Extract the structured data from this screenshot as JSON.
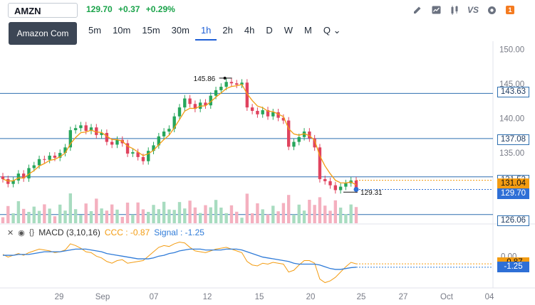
{
  "symbol": {
    "value": "AMZN",
    "tooltip": "Amazon Com"
  },
  "quote": {
    "price": "129.70",
    "change": "+0.37",
    "change_pct": "+0.29%",
    "color": "#1aa34a"
  },
  "toolbar": {
    "icons": [
      "pencil-icon",
      "chart-icon",
      "candles-icon",
      "compare-icon",
      "settings-icon",
      "alert-badge-icon"
    ],
    "vs_label": "VS",
    "badge": "1"
  },
  "intervals": [
    {
      "label": "5m",
      "active": false
    },
    {
      "label": "10m",
      "active": false
    },
    {
      "label": "15m",
      "active": false
    },
    {
      "label": "30m",
      "active": false
    },
    {
      "label": "1h",
      "active": true
    },
    {
      "label": "2h",
      "active": false
    },
    {
      "label": "4h",
      "active": false
    },
    {
      "label": "D",
      "active": false
    },
    {
      "label": "W",
      "active": false
    },
    {
      "label": "M",
      "active": false
    },
    {
      "label": "Q",
      "active": false
    }
  ],
  "price_axis": [
    "150.00",
    "145.00",
    "140.00",
    "135.00",
    "130.00"
  ],
  "price_tags": [
    {
      "label": "143.63",
      "style": "line"
    },
    {
      "label": "137.08",
      "style": "line"
    },
    {
      "label": "131.53",
      "style": "line"
    },
    {
      "label": "131.04",
      "style": "orange"
    },
    {
      "label": "129.70",
      "style": "blue"
    },
    {
      "label": "126.06",
      "style": "line"
    }
  ],
  "annotations": {
    "high": "145.86",
    "low": "129.31"
  },
  "macd": {
    "name": "MACD (3,10,16)",
    "ccc_label": "CCC : -0.87",
    "signal_label": "Signal : -1.25",
    "axis_value": "0.00",
    "tag_ccc": "-0.87",
    "tag_signal": "-1.25",
    "ccc_color": "#f39c12",
    "signal_color": "#2f7bd8"
  },
  "time_axis": [
    "29",
    "Sep",
    "07",
    "12",
    "15",
    "20",
    "25",
    "27",
    "Oct",
    "04"
  ],
  "chart_data": {
    "type": "candlestick",
    "interval": "1h",
    "ylim": [
      125,
      151
    ],
    "horizontal_levels": [
      143.63,
      137.08,
      131.53,
      126.06
    ],
    "close_series": [
      131.2,
      130.5,
      131.0,
      132.0,
      131.3,
      132.8,
      133.2,
      134.1,
      134.0,
      134.6,
      134.3,
      135.0,
      135.8,
      138.3,
      138.6,
      139.0,
      138.2,
      138.7,
      137.6,
      137.9,
      136.6,
      136.2,
      136.9,
      136.4,
      134.9,
      135.1,
      134.4,
      133.8,
      135.3,
      136.1,
      137.4,
      138.1,
      138.5,
      140.3,
      141.6,
      142.9,
      142.1,
      141.4,
      142.3,
      141.9,
      143.3,
      144.1,
      144.6,
      145.3,
      145.1,
      144.9,
      145.2,
      141.6,
      141.1,
      140.6,
      141.2,
      140.3,
      140.9,
      140.1,
      139.7,
      135.9,
      136.6,
      137.3,
      138.1,
      137.1,
      135.8,
      131.2,
      130.9,
      130.3,
      129.6,
      130.1,
      130.6,
      131.0,
      129.7
    ],
    "ccc_series": [
      0.2,
      -0.1,
      0.1,
      0.3,
      0.1,
      0.4,
      0.6,
      0.8,
      0.7,
      0.6,
      0.4,
      0.5,
      0.7,
      1.4,
      1.2,
      0.9,
      0.5,
      0.4,
      0.0,
      -0.2,
      -0.6,
      -0.8,
      -0.5,
      -0.4,
      -0.8,
      -0.7,
      -0.6,
      -0.5,
      0.0,
      0.5,
      1.0,
      1.2,
      1.1,
      1.4,
      1.6,
      1.5,
      1.0,
      0.6,
      0.5,
      0.4,
      0.6,
      0.8,
      0.9,
      1.0,
      0.8,
      0.6,
      0.4,
      -0.6,
      -1.0,
      -1.1,
      -0.8,
      -0.9,
      -0.7,
      -0.8,
      -0.9,
      -1.8,
      -1.6,
      -1.0,
      -0.5,
      -0.5,
      -0.8,
      -2.6,
      -3.0,
      -2.8,
      -2.4,
      -1.8,
      -1.2,
      -0.7,
      -0.87
    ],
    "signal_series": [
      0.1,
      0.1,
      0.1,
      0.2,
      0.2,
      0.2,
      0.3,
      0.4,
      0.5,
      0.5,
      0.5,
      0.5,
      0.6,
      0.7,
      0.8,
      0.8,
      0.8,
      0.7,
      0.6,
      0.5,
      0.3,
      0.2,
      0.1,
      0.0,
      -0.1,
      -0.2,
      -0.3,
      -0.3,
      -0.3,
      -0.2,
      0.0,
      0.1,
      0.3,
      0.4,
      0.6,
      0.7,
      0.8,
      0.8,
      0.8,
      0.7,
      0.7,
      0.7,
      0.7,
      0.8,
      0.8,
      0.8,
      0.7,
      0.5,
      0.3,
      0.1,
      -0.1,
      -0.2,
      -0.3,
      -0.4,
      -0.5,
      -0.6,
      -0.8,
      -0.9,
      -0.9,
      -0.9,
      -0.9,
      -1.0,
      -1.2,
      -1.4,
      -1.5,
      -1.5,
      -1.4,
      -1.3,
      -1.25
    ]
  }
}
